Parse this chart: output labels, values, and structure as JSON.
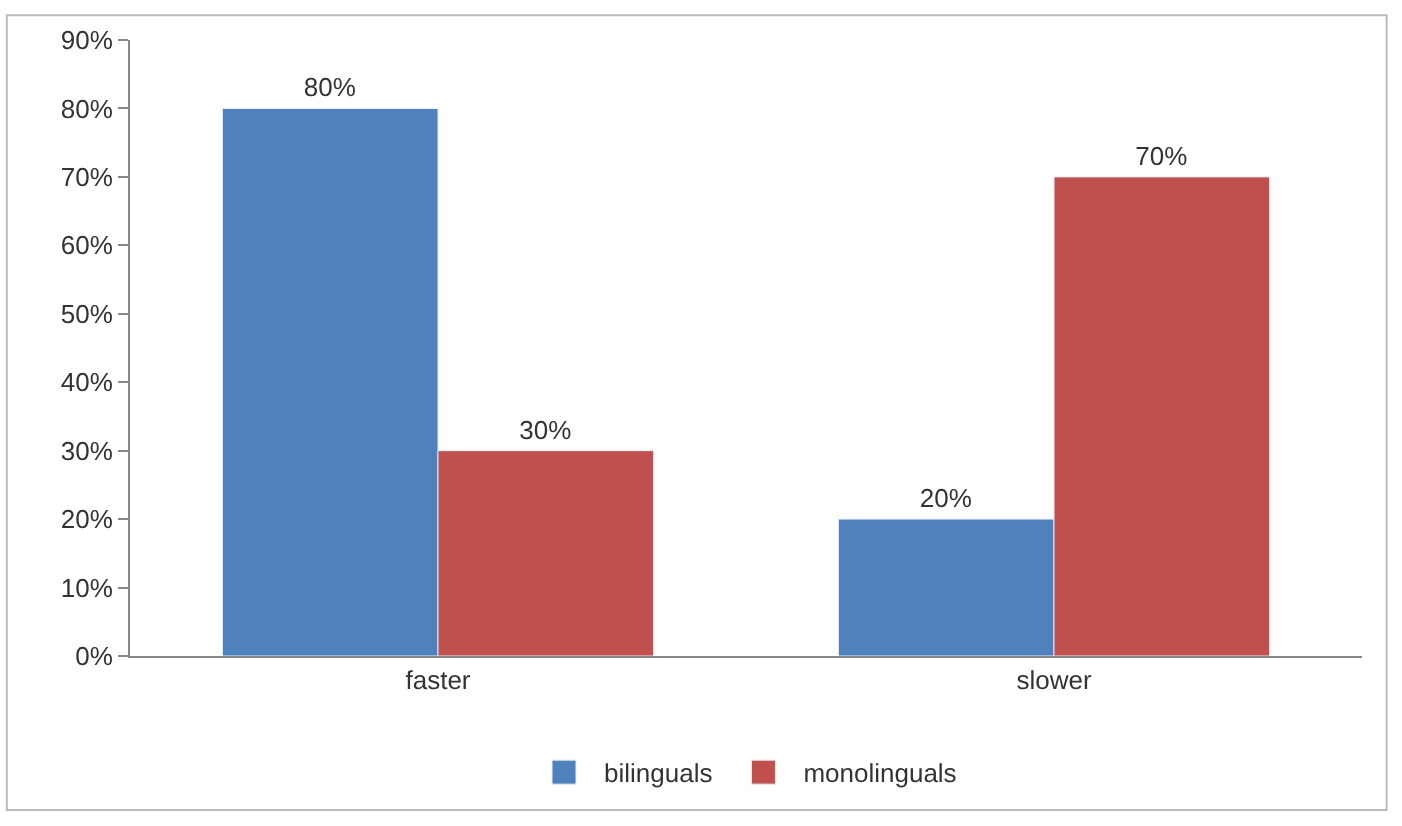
{
  "chart_data": {
    "type": "bar",
    "categories": [
      "faster",
      "slower"
    ],
    "series": [
      {
        "name": "bilinguals",
        "color": "#4f81bd",
        "values": [
          80,
          20
        ],
        "value_labels": [
          "80%",
          "20%"
        ]
      },
      {
        "name": "monolinguals",
        "color": "#c0504d",
        "values": [
          30,
          70
        ],
        "value_labels": [
          "30%",
          "70%"
        ]
      }
    ],
    "ylim": [
      0,
      90
    ],
    "yticks": [
      {
        "value": 0,
        "label": "0%"
      },
      {
        "value": 10,
        "label": "10%"
      },
      {
        "value": 20,
        "label": "20%"
      },
      {
        "value": 30,
        "label": "30%"
      },
      {
        "value": 40,
        "label": "40%"
      },
      {
        "value": 50,
        "label": "50%"
      },
      {
        "value": 60,
        "label": "60%"
      },
      {
        "value": 70,
        "label": "70%"
      },
      {
        "value": 80,
        "label": "80%"
      },
      {
        "value": 90,
        "label": "90%"
      }
    ],
    "grid": false,
    "legend": "bottom"
  }
}
